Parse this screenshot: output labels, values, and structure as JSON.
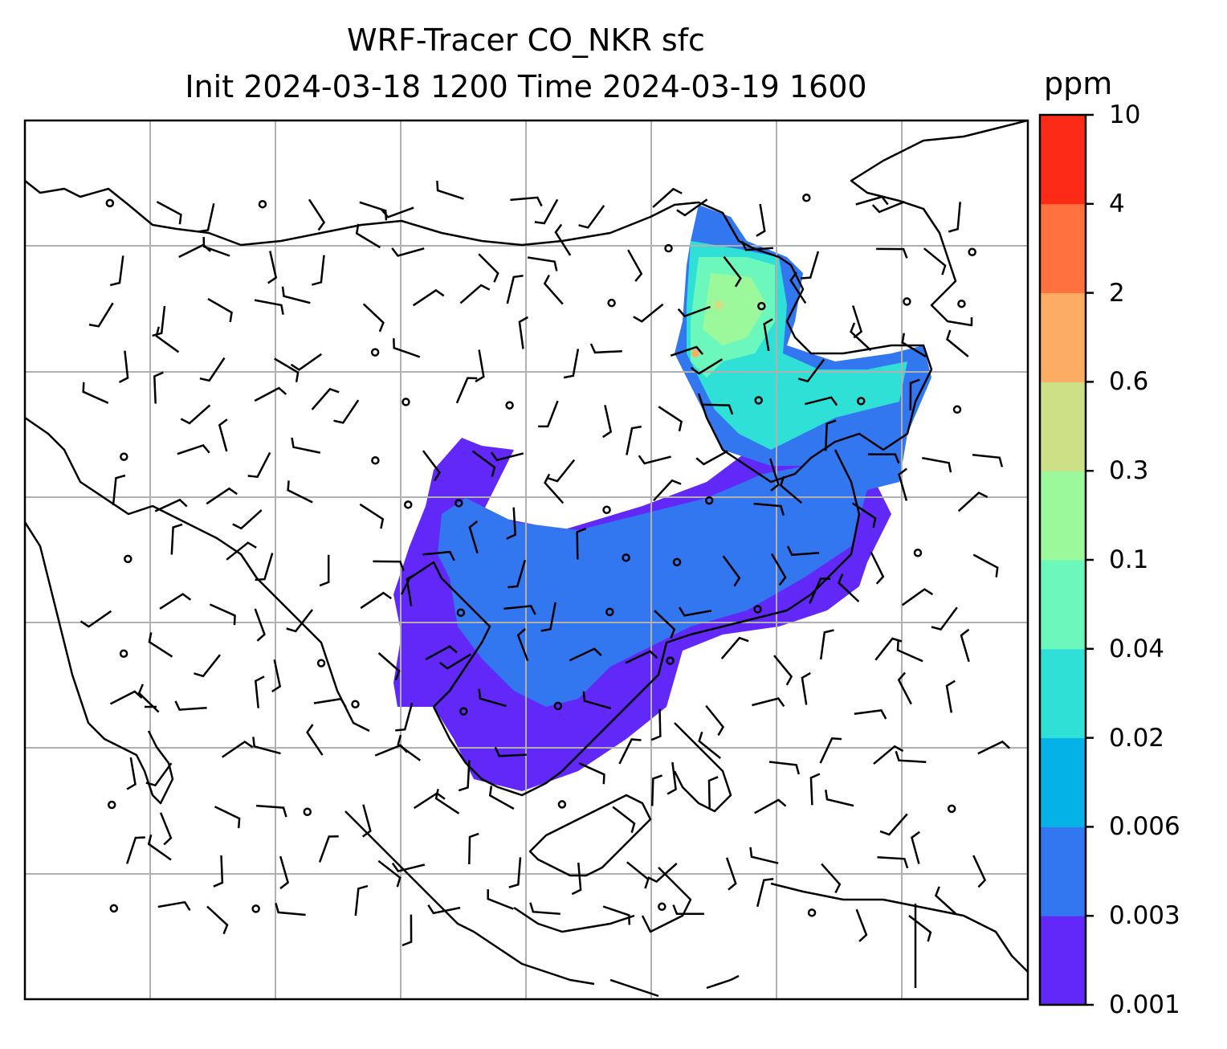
{
  "title": {
    "line1": "WRF-Tracer CO_NKR sfc",
    "line2": "Init 2024-03-18 1200 Time 2024-03-19 1600"
  },
  "colorbar": {
    "unit": "ppm",
    "levels": [
      "0.001",
      "0.003",
      "0.006",
      "0.02",
      "0.04",
      "0.1",
      "0.3",
      "0.6",
      "2",
      "4",
      "10"
    ],
    "colors": [
      "#6128f7",
      "#3377f0",
      "#04b2e8",
      "#2fe0d6",
      "#6cf8bc",
      "#9cf99b",
      "#cee086",
      "#fdad63",
      "#ff713d",
      "#fe2a18"
    ]
  },
  "map": {
    "region": "East / Southeast Asia",
    "gridlines": true,
    "coastline_color": "#000000",
    "grid_color": "#b0b0b0"
  }
}
